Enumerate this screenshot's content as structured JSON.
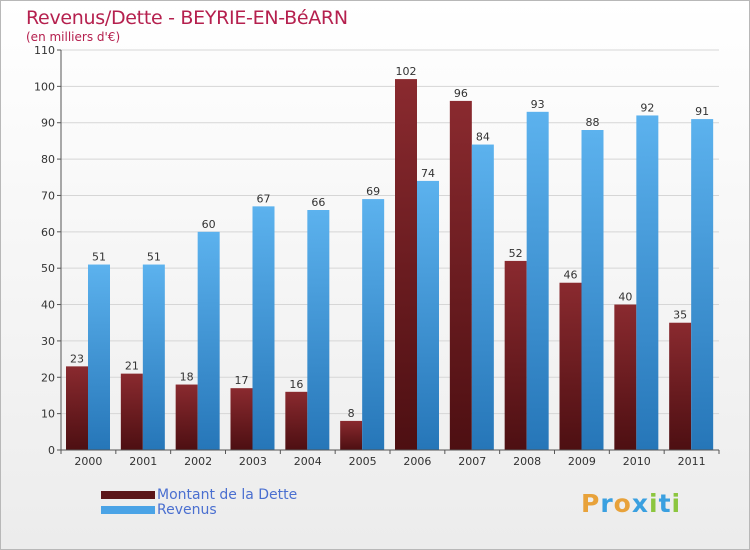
{
  "header": {
    "title": "Revenus/Dette - BEYRIE-EN-BéARN",
    "subtitle": "(en milliers d'€)"
  },
  "logo": {
    "letters": [
      "P",
      "r",
      "o",
      "x",
      "i",
      "t",
      "i"
    ],
    "colors": [
      "#e8a23a",
      "#3aa0e0",
      "#e8a23a",
      "#3aa0e0",
      "#8cc63f",
      "#3aa0e0",
      "#8cc63f"
    ]
  },
  "colors": {
    "dette": "#7a1f24",
    "dette_dark": "#4d0f12",
    "revenus": "#4aa3e6",
    "revenus_dark": "#2676b8",
    "title": "#b5204e",
    "legend_text": "#4a6fd0"
  },
  "legend": {
    "dette_label": "Montant de la Dette",
    "revenus_label": "Revenus"
  },
  "chart_data": {
    "type": "bar",
    "title": "Revenus/Dette - BEYRIE-EN-BéARN",
    "subtitle": "(en milliers d'€)",
    "categories": [
      "2000",
      "2001",
      "2002",
      "2003",
      "2004",
      "2005",
      "2006",
      "2007",
      "2008",
      "2009",
      "2010",
      "2011"
    ],
    "series": [
      {
        "name": "Montant de la Dette",
        "values": [
          23,
          21,
          18,
          17,
          16,
          8,
          102,
          96,
          52,
          46,
          40,
          35
        ]
      },
      {
        "name": "Revenus",
        "values": [
          51,
          51,
          60,
          67,
          66,
          69,
          74,
          84,
          93,
          88,
          92,
          91
        ]
      }
    ],
    "ylim": [
      0,
      110
    ],
    "yticks": [
      0,
      10,
      20,
      30,
      40,
      50,
      60,
      70,
      80,
      90,
      100,
      110
    ],
    "grid": true,
    "legend_position": "bottom-left",
    "data_labels": true
  }
}
